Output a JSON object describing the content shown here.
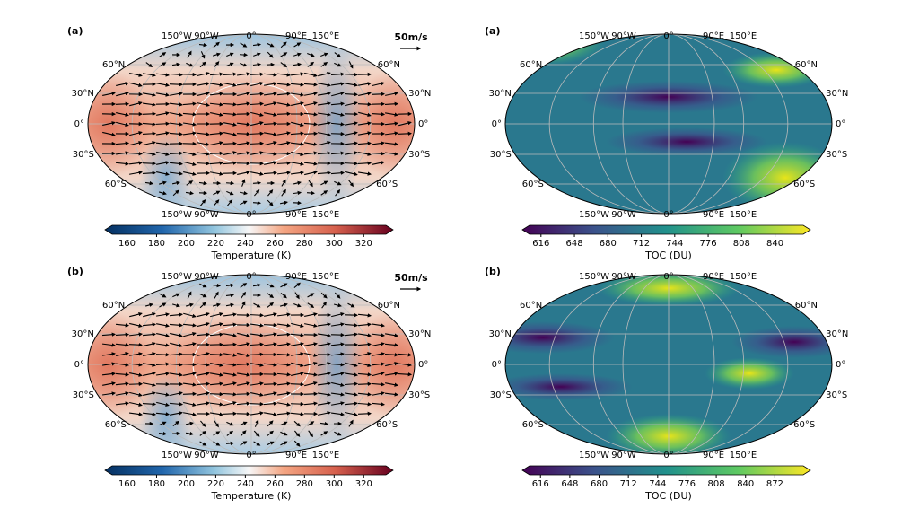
{
  "panels": [
    {
      "label": "(a)",
      "lon_labels": [
        "150°W",
        "90°W",
        "0°",
        "90°E",
        "150°E"
      ],
      "lat_labels": [
        "60°N",
        "30°N",
        "0°",
        "30°S",
        "60°S"
      ],
      "scale_label": "50m/s",
      "colorbar": {
        "label": "Temperature (K)",
        "lim": [
          150,
          335
        ],
        "ticks": [
          160,
          180,
          200,
          220,
          240,
          260,
          280,
          300,
          320
        ]
      }
    },
    {
      "label": "(a)",
      "lon_labels": [
        "150°W",
        "90°W",
        "0°",
        "90°E",
        "150°E"
      ],
      "lat_labels": [
        "60°N",
        "30°N",
        "0°",
        "30°S",
        "60°S"
      ],
      "colorbar": {
        "label": "TOC (DU)",
        "lim": [
          605,
          867
        ],
        "ticks": [
          616,
          648,
          680,
          712,
          744,
          776,
          808,
          840
        ]
      }
    },
    {
      "label": "(b)",
      "lon_labels": [
        "150°W",
        "90°W",
        "0°",
        "90°E",
        "150°E"
      ],
      "lat_labels": [
        "60°N",
        "30°N",
        "0°",
        "30°S",
        "60°S"
      ],
      "scale_label": "50m/s",
      "colorbar": {
        "label": "Temperature (K)",
        "lim": [
          150,
          335
        ],
        "ticks": [
          160,
          180,
          200,
          220,
          240,
          260,
          280,
          300,
          320
        ]
      }
    },
    {
      "label": "(b)",
      "lon_labels": [
        "150°W",
        "90°W",
        "0°",
        "90°E",
        "150°E"
      ],
      "lat_labels": [
        "60°N",
        "30°N",
        "0°",
        "30°S",
        "60°S"
      ],
      "colorbar": {
        "label": "TOC (DU)",
        "lim": [
          604,
          903
        ],
        "ticks": [
          616,
          648,
          680,
          712,
          744,
          776,
          808,
          840,
          872
        ]
      }
    }
  ]
}
